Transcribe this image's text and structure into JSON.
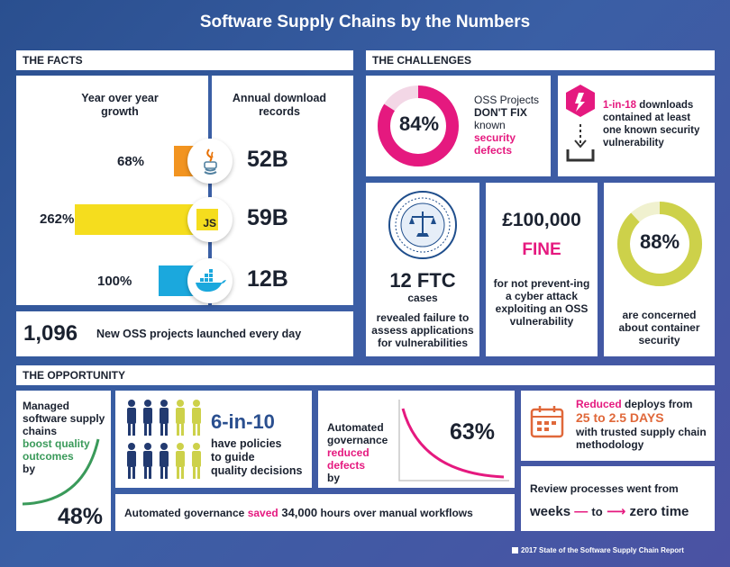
{
  "title": "Software Supply Chains by the Numbers",
  "sections": {
    "facts": "THE FACTS",
    "challenges": "THE CHALLENGES",
    "opportunity": "THE OPPORTUNITY"
  },
  "facts": {
    "growth_header": "Year over year growth",
    "download_header": "Annual download records",
    "rows": [
      {
        "ecosystem": "java",
        "growth": "68%",
        "growth_value": 68,
        "downloads": "52B",
        "color": "#f29420"
      },
      {
        "ecosystem": "javascript",
        "growth": "262%",
        "growth_value": 262,
        "downloads": "59B",
        "color": "#f5dd1e",
        "icon_text": "JS"
      },
      {
        "ecosystem": "docker",
        "growth": "100%",
        "growth_value": 100,
        "downloads": "12B",
        "color": "#1ba8dd"
      }
    ],
    "new_projects_number": "1,096",
    "new_projects_text": "New OSS projects launched every day"
  },
  "challenges": {
    "oss": {
      "percent": "84%",
      "value": 84,
      "line1": "OSS Projects",
      "line2": "DON'T FIX",
      "line3": "known",
      "line4": "security",
      "line5": "defects"
    },
    "downloads": {
      "highlight": "1-in-18",
      "line1": " downloads",
      "line2": "contained at least",
      "line3": "one known ",
      "line3b": "security",
      "line4": "vulnerability"
    },
    "ftc": {
      "number": "12 FTC",
      "unit": "cases",
      "text": "revealed failure to assess applications for vulnerabilities"
    },
    "fine": {
      "amount": "£100,000",
      "label": "FINE",
      "text": "for not prevent-ing a cyber attack exploiting an OSS vulnerability"
    },
    "container": {
      "percent": "88%",
      "value": 88,
      "text": "are concerned about container security"
    }
  },
  "opportunity": {
    "quality": {
      "line1": "Managed software supply chains",
      "highlight": "boost quality outcomes",
      "line3": "by",
      "percent": "48%"
    },
    "policies": {
      "number": "6-in-10",
      "line1": "have policies",
      "line2": "to guide",
      "line3": "quality decisions"
    },
    "defects": {
      "line1": "Automated governance",
      "highlight": "reduced defects",
      "line3": "by",
      "percent": "63%"
    },
    "deploys": {
      "highlight": "Reduced",
      "line1": " deploys from",
      "range": "25 to 2.5 DAYS",
      "line3": "with trusted supply chain methodology"
    },
    "saved": {
      "pre": "Automated governance ",
      "highlight": "saved",
      "number": " 34,000",
      "post": " hours over manual workflows"
    },
    "review": {
      "line1": "Review processes went from",
      "from": "weeks",
      "to": "to",
      "target": "zero time"
    }
  },
  "footer": "2017 State of the Software Supply Chain Report",
  "colors": {
    "pink": "#e5197f",
    "olive": "#cdd14a",
    "green": "#3a9a5a",
    "orange": "#e0683a",
    "navy": "#2a4f8f"
  }
}
